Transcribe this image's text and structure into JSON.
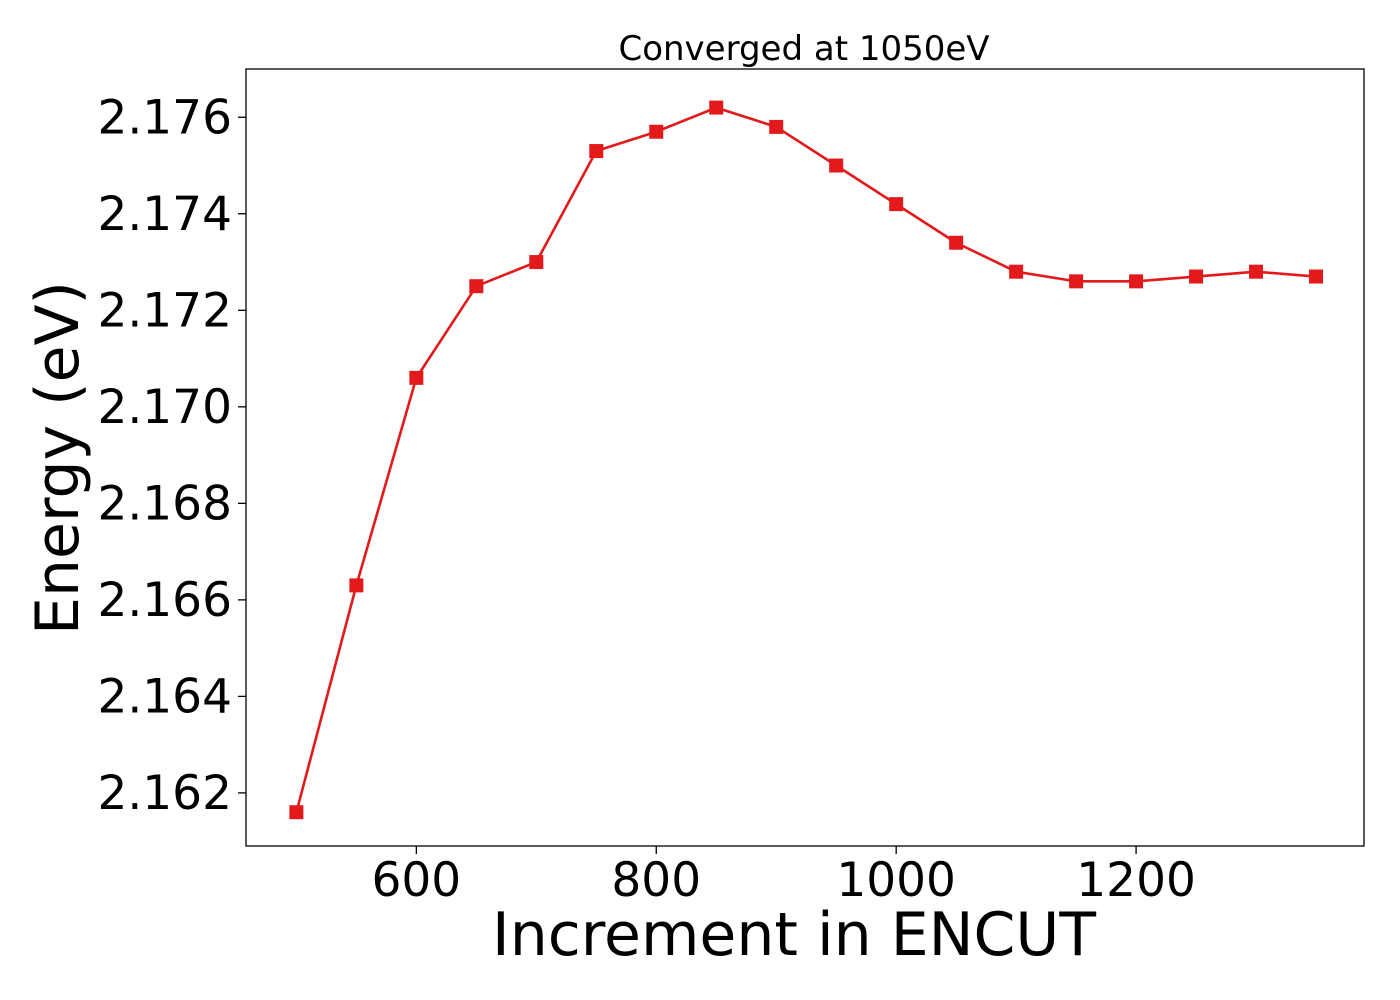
{
  "chart_data": {
    "type": "line",
    "title": "Converged at 1050eV",
    "xlabel": "Increment in ENCUT",
    "ylabel": "Energy (eV)",
    "xlim": [
      458,
      1390
    ],
    "ylim": [
      2.1609,
      2.177
    ],
    "x_ticks": [
      600,
      800,
      1000,
      1200
    ],
    "y_ticks": [
      2.162,
      2.164,
      2.166,
      2.168,
      2.17,
      2.172,
      2.174,
      2.176
    ],
    "x_tick_labels": [
      "600",
      "800",
      "1000",
      "1200"
    ],
    "y_tick_labels": [
      "2.162",
      "2.164",
      "2.166",
      "2.168",
      "2.170",
      "2.172",
      "2.174",
      "2.176"
    ],
    "grid": false,
    "marker": "square",
    "color": "#e31a1c",
    "series": [
      {
        "x": [
          500,
          550,
          600,
          650,
          700,
          750,
          800,
          850,
          900,
          950,
          1000,
          1050,
          1100,
          1150,
          1200,
          1250,
          1300,
          1350
        ],
        "values": [
          2.1616,
          2.1663,
          2.1706,
          2.1725,
          2.173,
          2.1753,
          2.1757,
          2.1762,
          2.1758,
          2.175,
          2.1742,
          2.1734,
          2.1728,
          2.1726,
          2.1726,
          2.1727,
          2.1728,
          2.1727
        ]
      }
    ]
  }
}
